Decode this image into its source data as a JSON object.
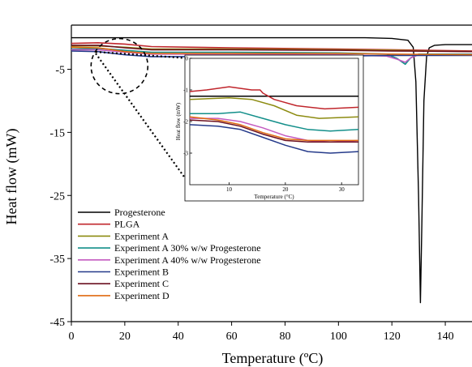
{
  "chart_data": [
    {
      "type": "line",
      "xlabel": "Temperature (ºC)",
      "ylabel": "Heat flow (mW)",
      "xlim": [
        0,
        150
      ],
      "ylim": [
        -45,
        2
      ],
      "xticks": [
        "0",
        "20",
        "40",
        "60",
        "80",
        "100",
        "120",
        "140"
      ],
      "yticks": [
        "-5",
        "-15",
        "-25",
        "-35",
        "-45"
      ],
      "grid": false,
      "legend_position": "bottom-left",
      "series": [
        {
          "name": "Progesterone",
          "color": "#000000",
          "x": [
            0,
            20,
            40,
            60,
            80,
            100,
            110,
            120,
            126,
            128,
            129,
            130,
            130.7,
            131.2,
            132,
            133,
            134,
            136,
            140,
            150
          ],
          "y": [
            0,
            0,
            0,
            0,
            0,
            0,
            0,
            -0.1,
            -0.4,
            -1.5,
            -7,
            -25,
            -42,
            -30,
            -10,
            -3,
            -1.6,
            -1.2,
            -1.1,
            -1.1
          ]
        },
        {
          "name": "PLGA",
          "color": "#c0262c",
          "x": [
            0,
            10,
            20,
            30,
            60,
            100,
            120,
            150
          ],
          "y": [
            -0.9,
            -0.8,
            -1.0,
            -1.4,
            -1.6,
            -1.8,
            -1.9,
            -2.1
          ]
        },
        {
          "name": "Experiment A",
          "color": "#8c8b10",
          "x": [
            0,
            10,
            20,
            30,
            60,
            100,
            120,
            150
          ],
          "y": [
            -1.3,
            -1.3,
            -1.5,
            -1.8,
            -1.8,
            -1.9,
            -2.0,
            -2.2
          ]
        },
        {
          "name": "Experiment A 30% w/w Progesterone",
          "color": "#138f8a",
          "x": [
            0,
            10,
            20,
            30,
            60,
            100,
            118,
            122,
            125,
            127,
            130,
            150
          ],
          "y": [
            -1.8,
            -1.7,
            -2.0,
            -2.3,
            -2.3,
            -2.4,
            -2.6,
            -3.3,
            -4.2,
            -3.2,
            -2.6,
            -2.6
          ]
        },
        {
          "name": "Experiment A 40% w/w Progesterone",
          "color": "#c45bc0",
          "x": [
            0,
            10,
            20,
            30,
            60,
            100,
            118,
            122,
            125,
            127,
            130,
            150
          ],
          "y": [
            -1.9,
            -1.9,
            -2.3,
            -2.6,
            -2.6,
            -2.7,
            -2.9,
            -3.4,
            -3.9,
            -3.2,
            -2.7,
            -2.7
          ]
        },
        {
          "name": "Experiment B",
          "color": "#253a8a",
          "x": [
            0,
            10,
            20,
            30,
            60,
            100,
            120,
            150
          ],
          "y": [
            -2.1,
            -2.2,
            -2.7,
            -3.0,
            -3.0,
            -2.9,
            -2.8,
            -2.8
          ]
        },
        {
          "name": "Experiment C",
          "color": "#6b1020",
          "x": [
            0,
            10,
            20,
            30,
            60,
            100,
            120,
            150
          ],
          "y": [
            -1.2,
            -1.2,
            -1.6,
            -1.9,
            -1.9,
            -2.0,
            -2.1,
            -2.2
          ]
        },
        {
          "name": "Experiment D",
          "color": "#e06a10",
          "x": [
            0,
            10,
            20,
            30,
            60,
            100,
            120,
            150
          ],
          "y": [
            -1.5,
            -1.6,
            -2.2,
            -2.5,
            -2.5,
            -2.5,
            -2.6,
            -2.7
          ]
        }
      ]
    },
    {
      "type": "line",
      "xlabel": "Temperature (°C)",
      "ylabel": "Heat flow (mW)",
      "xlim": [
        3,
        33
      ],
      "ylim": [
        -4,
        0
      ],
      "xticks": [
        "10",
        "20",
        "30"
      ],
      "yticks": [
        "0",
        "-1",
        "-2",
        "-3"
      ],
      "grid": false,
      "series": [
        {
          "name": "Progesterone",
          "color": "#000000",
          "x": [
            3,
            10,
            20,
            33
          ],
          "y": [
            -1.2,
            -1.2,
            -1.2,
            -1.2
          ]
        },
        {
          "name": "PLGA",
          "color": "#c0262c",
          "x": [
            3,
            6,
            10,
            14,
            15.5,
            16,
            18,
            22,
            27,
            33
          ],
          "y": [
            -1.05,
            -1.0,
            -0.9,
            -1.0,
            -1.0,
            -1.1,
            -1.3,
            -1.5,
            -1.6,
            -1.55
          ]
        },
        {
          "name": "Experiment A",
          "color": "#8c8b10",
          "x": [
            3,
            10,
            14,
            18,
            22,
            26,
            33
          ],
          "y": [
            -1.3,
            -1.25,
            -1.3,
            -1.5,
            -1.8,
            -1.9,
            -1.85
          ]
        },
        {
          "name": "Experiment A 30% w/w Progesterone",
          "color": "#138f8a",
          "x": [
            3,
            8,
            12,
            16,
            20,
            24,
            28,
            33
          ],
          "y": [
            -1.75,
            -1.75,
            -1.7,
            -1.9,
            -2.1,
            -2.25,
            -2.3,
            -2.25
          ]
        },
        {
          "name": "Experiment A 40% w/w Progesterone",
          "color": "#c45bc0",
          "x": [
            3,
            8,
            12,
            16,
            20,
            24,
            28,
            33
          ],
          "y": [
            -1.9,
            -1.9,
            -2.0,
            -2.2,
            -2.45,
            -2.6,
            -2.65,
            -2.6
          ]
        },
        {
          "name": "Experiment B",
          "color": "#253a8a",
          "x": [
            3,
            8,
            12,
            16,
            20,
            24,
            28,
            33
          ],
          "y": [
            -2.1,
            -2.15,
            -2.25,
            -2.5,
            -2.75,
            -2.95,
            -3.0,
            -2.95
          ]
        },
        {
          "name": "Experiment C",
          "color": "#6b1020",
          "x": [
            3,
            8,
            12,
            16,
            20,
            24,
            28,
            33
          ],
          "y": [
            -1.95,
            -2.0,
            -2.15,
            -2.4,
            -2.6,
            -2.65,
            -2.65,
            -2.65
          ]
        },
        {
          "name": "Experiment D",
          "color": "#e06a10",
          "x": [
            3,
            8,
            12,
            16,
            20,
            24,
            28,
            33
          ],
          "y": [
            -1.85,
            -1.95,
            -2.1,
            -2.35,
            -2.55,
            -2.6,
            -2.6,
            -2.6
          ]
        }
      ]
    }
  ]
}
